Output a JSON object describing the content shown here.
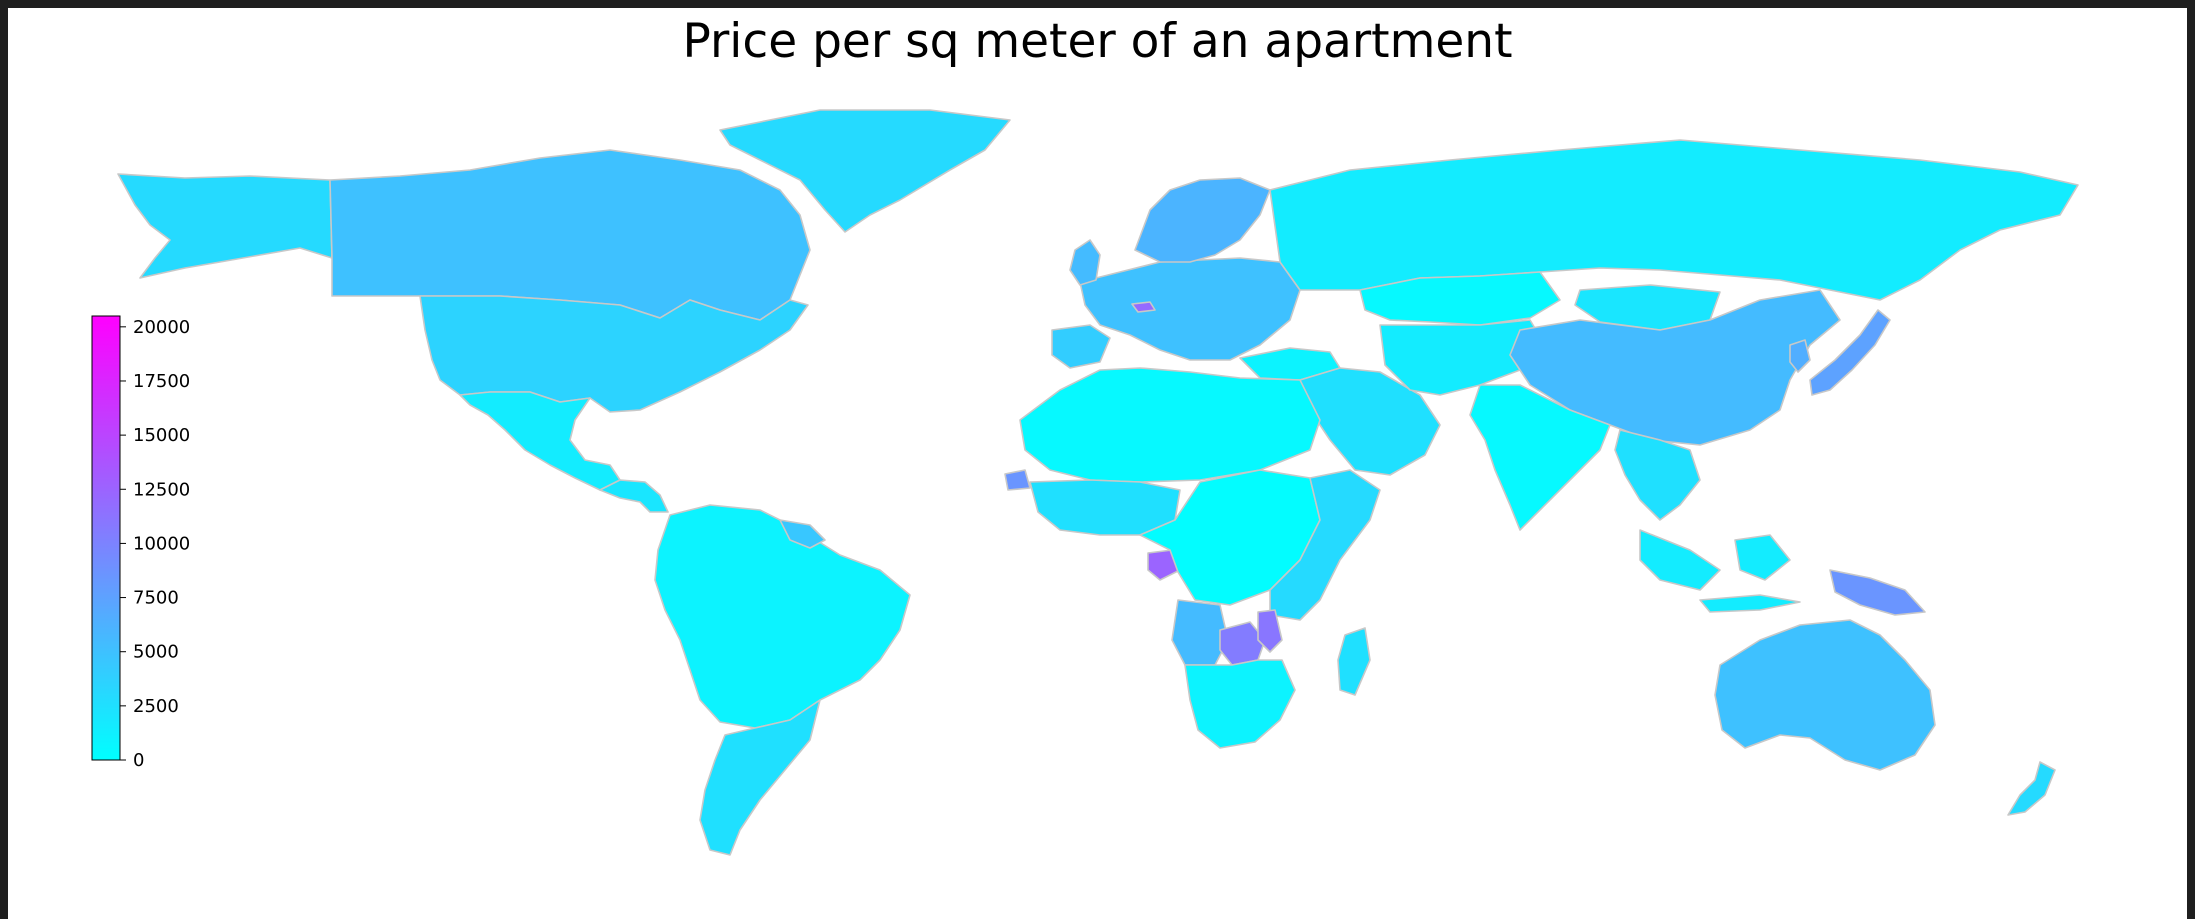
{
  "title": "Price per sq meter of an apartment",
  "colors": {
    "cmap_low": "#00ffff",
    "cmap_high": "#ff00ff",
    "ocean": "#ffffff",
    "country_border": "#c8c8c8"
  },
  "colorbar": {
    "min": 0,
    "max": 20500,
    "ticks": [
      {
        "value": 0,
        "label": "0"
      },
      {
        "value": 2500,
        "label": "2500"
      },
      {
        "value": 5000,
        "label": "5000"
      },
      {
        "value": 7500,
        "label": "7500"
      },
      {
        "value": 10000,
        "label": "10000"
      },
      {
        "value": 12500,
        "label": "12500"
      },
      {
        "value": 15000,
        "label": "15000"
      },
      {
        "value": 17500,
        "label": "17500"
      },
      {
        "value": 20000,
        "label": "20000"
      }
    ]
  },
  "regions": [
    {
      "name": "Canada",
      "value": 5000
    },
    {
      "name": "Alaska",
      "value": 3000
    },
    {
      "name": "Greenland",
      "value": 3000
    },
    {
      "name": "United States",
      "value": 3500
    },
    {
      "name": "Mexico",
      "value": 1500
    },
    {
      "name": "Central America",
      "value": 2000
    },
    {
      "name": "South America",
      "value": 1000
    },
    {
      "name": "Guianas",
      "value": 4500
    },
    {
      "name": "Southern Cone",
      "value": 2500
    },
    {
      "name": "Europe",
      "value": 5000
    },
    {
      "name": "Scandinavia",
      "value": 6000
    },
    {
      "name": "United Kingdom",
      "value": 5500
    },
    {
      "name": "Iberia",
      "value": 4000
    },
    {
      "name": "Switzerland",
      "value": 12000
    },
    {
      "name": "Russia",
      "value": 1500
    },
    {
      "name": "Turkey",
      "value": 1000
    },
    {
      "name": "Kazakhstan",
      "value": 500
    },
    {
      "name": "Middle East",
      "value": 2500
    },
    {
      "name": "Central Asia",
      "value": 1500
    },
    {
      "name": "Mongolia",
      "value": 2000
    },
    {
      "name": "China",
      "value": 5500
    },
    {
      "name": "India",
      "value": 500
    },
    {
      "name": "Southeast Asia",
      "value": 2500
    },
    {
      "name": "Korea",
      "value": 6500
    },
    {
      "name": "Japan",
      "value": 7500
    },
    {
      "name": "Indonesia",
      "value": 1500
    },
    {
      "name": "New Guinea",
      "value": 8500
    },
    {
      "name": "Australia",
      "value": 5000
    },
    {
      "name": "New Zealand",
      "value": 3000
    },
    {
      "name": "North Africa",
      "value": 500
    },
    {
      "name": "Senegal",
      "value": 8500
    },
    {
      "name": "West Africa",
      "value": 2500
    },
    {
      "name": "Gabon",
      "value": 12500
    },
    {
      "name": "Central Africa",
      "value": 200
    },
    {
      "name": "East Africa",
      "value": 3000
    },
    {
      "name": "Angola",
      "value": 5500
    },
    {
      "name": "Zambia",
      "value": 10500
    },
    {
      "name": "Malawi",
      "value": 11000
    },
    {
      "name": "Southern Africa",
      "value": 1000
    },
    {
      "name": "Madagascar",
      "value": 2500
    }
  ]
}
